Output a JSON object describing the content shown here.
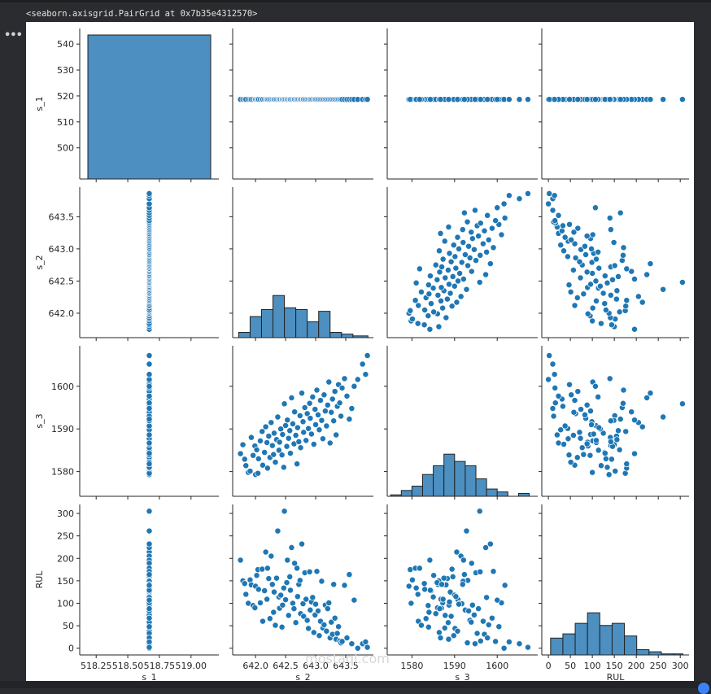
{
  "output": {
    "text": "<seaborn.axisgrid.PairGrid at 0x7b35e4312570>",
    "cell_menu_icon": "ellipsis-icon"
  },
  "chart_data": {
    "type": "pairplot",
    "title": "",
    "variables": [
      "s_1",
      "s_2",
      "s_3",
      "RUL"
    ],
    "point_color": "#1f77b4",
    "hist_color": "#4c8fc0",
    "axes": {
      "s_1": {
        "label": "s_1",
        "range": [
          488,
          546
        ],
        "ticks": [
          500,
          510,
          520,
          530,
          540
        ],
        "hist_x_range": [
          518.12,
          519.22
        ],
        "hist_x_ticks": [
          518.25,
          518.5,
          518.75,
          519.0
        ],
        "hist_x_tick_labels": [
          "518.25",
          "518.50",
          "518.75",
          "519.00"
        ],
        "constant_value": 518.67
      },
      "s_2": {
        "label": "s_2",
        "range": [
          641.62,
          643.96
        ],
        "ticks": [
          642.0,
          642.5,
          643.0,
          643.5
        ],
        "tick_labels": [
          "642.0",
          "642.5",
          "643.0",
          "643.5"
        ]
      },
      "s_3": {
        "label": "s_3",
        "range": [
          1574.2,
          1609.5
        ],
        "ticks": [
          1580,
          1590,
          1600
        ],
        "tick_labels": [
          "1580",
          "1590",
          "1600"
        ]
      },
      "RUL": {
        "label": "RUL",
        "range": [
          -15,
          320
        ],
        "ticks": [
          0,
          50,
          100,
          150,
          200,
          250,
          300
        ],
        "tick_labels": [
          "0",
          "50",
          "100",
          "150",
          "200",
          "250",
          "300"
        ]
      }
    },
    "histograms": {
      "s_1": {
        "bins": [
          [
            518.17,
            519.17
          ]
        ],
        "counts": [
          1
        ],
        "note": "single bar spanning full height (constant column)"
      },
      "s_2": {
        "bin_edges": [
          641.72,
          641.91,
          642.1,
          642.29,
          642.48,
          642.67,
          642.86,
          643.05,
          643.24,
          643.43,
          643.62,
          643.87
        ],
        "counts": [
          3,
          12,
          16,
          24,
          17,
          16,
          9,
          15,
          3,
          2,
          1
        ]
      },
      "s_3": {
        "bin_edges": [
          1575.0,
          1577.5,
          1580.0,
          1582.5,
          1585.0,
          1587.5,
          1590.0,
          1592.5,
          1595.0,
          1597.5,
          1600.0,
          1602.5,
          1605.0,
          1607.5
        ],
        "counts": [
          1,
          4,
          7,
          15,
          21,
          29,
          24,
          21,
          12,
          5,
          3,
          0,
          2
        ]
      },
      "RUL": {
        "bin_edges": [
          5,
          33,
          61,
          89,
          117,
          145,
          173,
          201,
          229,
          257,
          285,
          306
        ],
        "counts": [
          16,
          20,
          30,
          40,
          28,
          30,
          18,
          5,
          3,
          1,
          1
        ]
      }
    },
    "scatter_points_s2_s3_RUL": [
      [
        641.75,
        1584.2,
        196
      ],
      [
        641.79,
        1586.3,
        150
      ],
      [
        641.82,
        1582.9,
        144
      ],
      [
        641.84,
        1581.4,
        120
      ],
      [
        641.88,
        1579.8,
        100
      ],
      [
        641.91,
        1580.1,
        152
      ],
      [
        641.93,
        1588.0,
        141
      ],
      [
        641.96,
        1583.8,
        95
      ],
      [
        641.99,
        1586.0,
        90
      ],
      [
        642.0,
        1579.3,
        138
      ],
      [
        642.02,
        1585.1,
        162
      ],
      [
        642.04,
        1579.6,
        175
      ],
      [
        642.05,
        1583.0,
        131
      ],
      [
        642.08,
        1587.2,
        101
      ],
      [
        642.11,
        1589.4,
        176
      ],
      [
        642.12,
        1581.5,
        60
      ],
      [
        642.15,
        1584.5,
        128
      ],
      [
        642.17,
        1590.5,
        214
      ],
      [
        642.19,
        1586.8,
        109
      ],
      [
        642.2,
        1580.8,
        178
      ],
      [
        642.22,
        1588.3,
        155
      ],
      [
        642.24,
        1583.3,
        66
      ],
      [
        642.26,
        1591.5,
        205
      ],
      [
        642.28,
        1586.1,
        142
      ],
      [
        642.3,
        1584.0,
        80
      ],
      [
        642.31,
        1589.0,
        125
      ],
      [
        642.33,
        1582.2,
        51
      ],
      [
        642.35,
        1587.5,
        156
      ],
      [
        642.37,
        1592.8,
        261
      ],
      [
        642.39,
        1585.0,
        114
      ],
      [
        642.4,
        1586.9,
        89
      ],
      [
        642.42,
        1590.0,
        118
      ],
      [
        642.44,
        1583.9,
        47
      ],
      [
        642.45,
        1588.7,
        96
      ],
      [
        642.47,
        1581.0,
        134
      ],
      [
        642.48,
        1595.9,
        305
      ],
      [
        642.5,
        1590.8,
        108
      ],
      [
        642.52,
        1585.9,
        146
      ],
      [
        642.53,
        1592.1,
        196
      ],
      [
        642.55,
        1587.8,
        73
      ],
      [
        642.57,
        1589.6,
        159
      ],
      [
        642.58,
        1584.3,
        129
      ],
      [
        642.6,
        1597.3,
        224
      ],
      [
        642.62,
        1591.2,
        100
      ],
      [
        642.64,
        1586.5,
        88
      ],
      [
        642.65,
        1594.0,
        189
      ],
      [
        642.67,
        1588.5,
        57
      ],
      [
        642.69,
        1581.8,
        178
      ],
      [
        642.7,
        1590.3,
        115
      ],
      [
        642.72,
        1587.0,
        142
      ],
      [
        642.74,
        1593.1,
        151
      ],
      [
        642.75,
        1585.6,
        77
      ],
      [
        642.77,
        1598.4,
        232
      ],
      [
        642.79,
        1591.7,
        99
      ],
      [
        642.8,
        1589.2,
        71
      ],
      [
        642.82,
        1595.0,
        168
      ],
      [
        642.84,
        1587.3,
        109
      ],
      [
        642.86,
        1593.6,
        62
      ],
      [
        642.88,
        1590.1,
        44
      ],
      [
        642.9,
        1596.0,
        170
      ],
      [
        642.91,
        1592.5,
        85
      ],
      [
        642.93,
        1588.8,
        103
      ],
      [
        642.95,
        1597.5,
        113
      ],
      [
        642.97,
        1586.4,
        35
      ],
      [
        642.99,
        1594.6,
        74
      ],
      [
        643.0,
        1591.0,
        98
      ],
      [
        643.02,
        1599.1,
        171
      ],
      [
        643.04,
        1593.3,
        83
      ],
      [
        643.06,
        1589.8,
        28
      ],
      [
        643.08,
        1596.7,
        60
      ],
      [
        643.1,
        1592.0,
        149
      ],
      [
        643.12,
        1587.7,
        45
      ],
      [
        643.14,
        1598.0,
        52
      ],
      [
        643.16,
        1594.2,
        96
      ],
      [
        643.18,
        1590.7,
        38
      ],
      [
        643.2,
        1595.6,
        88
      ],
      [
        643.22,
        1601.0,
        101
      ],
      [
        643.24,
        1586.7,
        23
      ],
      [
        643.26,
        1593.9,
        58
      ],
      [
        643.28,
        1597.0,
        31
      ],
      [
        643.3,
        1591.9,
        142
      ],
      [
        643.32,
        1598.8,
        67
      ],
      [
        643.34,
        1588.6,
        20
      ],
      [
        643.36,
        1595.3,
        33
      ],
      [
        643.38,
        1600.4,
        48
      ],
      [
        643.4,
        1596.1,
        16
      ],
      [
        643.42,
        1593.0,
        12
      ],
      [
        643.44,
        1599.6,
        15
      ],
      [
        643.48,
        1601.8,
        140
      ],
      [
        643.52,
        1597.7,
        23
      ],
      [
        643.56,
        1592.3,
        164
      ],
      [
        643.6,
        1594.8,
        10
      ],
      [
        643.64,
        1600.0,
        107
      ],
      [
        643.7,
        1601.6,
        0
      ],
      [
        643.78,
        1605.2,
        10
      ],
      [
        643.83,
        1602.8,
        14
      ],
      [
        643.86,
        1607.2,
        2
      ]
    ],
    "correlations_visible": {
      "s_2_vs_s_3": "positive",
      "s_2_vs_RUL": "negative",
      "s_3_vs_RUL": "negative",
      "s_1": "constant at ~518.67"
    },
    "xlabel_row": [
      "s_1",
      "s_2",
      "s_3",
      "RUL"
    ],
    "ylabel_col": [
      "s_1",
      "s_2",
      "s_3",
      "RUL"
    ],
    "grid": false,
    "legend": null
  },
  "watermark": {
    "text": "mostaql.com"
  }
}
